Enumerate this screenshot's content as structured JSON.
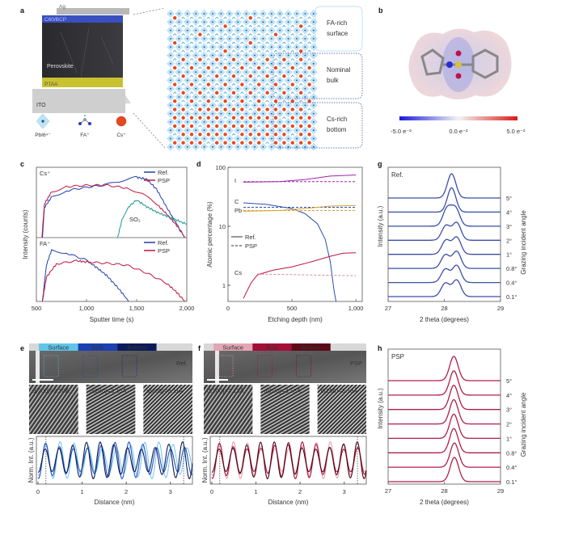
{
  "panels": {
    "a": {
      "label": "a",
      "layers": {
        "ag": "Ag",
        "etl": "C60/BCP",
        "perovskite": "Perovskite",
        "ptaa": "PTAA",
        "ito": "ITO"
      },
      "legend": {
        "pbi6": "PbI6⁴⁻",
        "fa": "FA⁺",
        "cs": "Cs⁺"
      },
      "regions": [
        {
          "line1": "FA-rich",
          "line2": "surface",
          "color": "#7fc6ea"
        },
        {
          "line1": "Nominal",
          "line2": "bulk",
          "color": "#2a3f9a"
        },
        {
          "line1": "Cs-rich",
          "line2": "bottom",
          "color": "#2a3f9a"
        }
      ],
      "colors": {
        "octahedron": "#bfe2f7",
        "cs": "#e8481c",
        "fa": "#3aa0d0"
      }
    },
    "b": {
      "label": "b",
      "colorbar": {
        "min": "-5.0 e⁻²",
        "mid": "0.0 e⁻²",
        "max": "5.0 e⁻²",
        "low_color": "#1a1adc",
        "high_color": "#dc1a1a"
      }
    },
    "c": {
      "label": "c"
    },
    "d": {
      "label": "d"
    },
    "e": {
      "label": "e",
      "bars": [
        "Surface",
        "Bulk",
        "Bottom"
      ],
      "bar_colors": [
        "#5fc4ea",
        "#1d3fb0",
        "#0b1b5a"
      ],
      "tag": "Ref.",
      "d_labels": [
        "d(200)=3.20Å",
        "d(200)=3.15Å",
        "d(200)=3.11Å"
      ]
    },
    "f": {
      "label": "f",
      "bars": [
        "Surface",
        "Bulk",
        "Bottom"
      ],
      "bar_colors": [
        "#e3a6b4",
        "#a30d36",
        "#5c0a18"
      ],
      "tag": "PSP",
      "d_labels": [
        "d(200)=3.13Å",
        "d(200)=3.13Å",
        "d(200)=3.13Å"
      ]
    },
    "g": {
      "label": "g"
    },
    "h": {
      "label": "h"
    }
  },
  "chart_data": [
    {
      "id": "c",
      "type": "line",
      "xlabel": "Sputter time (s)",
      "ylabel": "Intensity (counts)",
      "xlim": [
        500,
        2000
      ],
      "xticks": [
        "500",
        "1,000",
        "1,500",
        "2,000"
      ],
      "xtick_values": [
        500,
        1000,
        1500,
        2000
      ],
      "yscale": "log",
      "y_units": "relative",
      "subplots": [
        {
          "title": "Cs⁺",
          "legend": [
            "Ref.",
            "PSP"
          ],
          "annotation": "SO₂",
          "series": [
            {
              "name": "Ref.",
              "color": "#1f3fae",
              "points": [
                [
                  560,
                  0
                ],
                [
                  580,
                  0.45
                ],
                [
                  650,
                  0.6
                ],
                [
                  800,
                  0.7
                ],
                [
                  1000,
                  0.75
                ],
                [
                  1200,
                  0.79
                ],
                [
                  1350,
                  0.85
                ],
                [
                  1500,
                  0.9
                ],
                [
                  1600,
                  0.87
                ],
                [
                  1700,
                  0.72
                ],
                [
                  1800,
                  0.45
                ],
                [
                  1900,
                  0.2
                ],
                [
                  1980,
                  0
                ]
              ]
            },
            {
              "name": "PSP",
              "color": "#c0143c",
              "points": [
                [
                  555,
                  0
                ],
                [
                  580,
                  0.5
                ],
                [
                  650,
                  0.68
                ],
                [
                  800,
                  0.76
                ],
                [
                  1000,
                  0.78
                ],
                [
                  1200,
                  0.78
                ],
                [
                  1400,
                  0.74
                ],
                [
                  1550,
                  0.66
                ],
                [
                  1700,
                  0.5
                ],
                [
                  1800,
                  0.35
                ],
                [
                  1900,
                  0.18
                ],
                [
                  1980,
                  0
                ]
              ]
            },
            {
              "name": "SO₂",
              "color": "#1a9a8a",
              "points": [
                [
                  1310,
                  0
                ],
                [
                  1360,
                  0.3
                ],
                [
                  1420,
                  0.46
                ],
                [
                  1500,
                  0.56
                ],
                [
                  1600,
                  0.46
                ],
                [
                  1700,
                  0.38
                ],
                [
                  1800,
                  0.32
                ],
                [
                  1900,
                  0.26
                ],
                [
                  2000,
                  0.2
                ]
              ]
            }
          ]
        },
        {
          "title": "FA⁺",
          "legend": [
            "Ref.",
            "PSP"
          ],
          "series": [
            {
              "name": "Ref.",
              "color": "#1f3fae",
              "points": [
                [
                  560,
                  0
                ],
                [
                  600,
                  0.6
                ],
                [
                  650,
                  0.84
                ],
                [
                  800,
                  0.8
                ],
                [
                  1000,
                  0.68
                ],
                [
                  1100,
                  0.56
                ],
                [
                  1200,
                  0.43
                ],
                [
                  1300,
                  0.25
                ],
                [
                  1400,
                  0.05
                ],
                [
                  1420,
                  0
                ]
              ]
            },
            {
              "name": "PSP",
              "color": "#c0143c",
              "points": [
                [
                  560,
                  0
                ],
                [
                  600,
                  0.4
                ],
                [
                  700,
                  0.62
                ],
                [
                  900,
                  0.67
                ],
                [
                  1000,
                  0.65
                ],
                [
                  1200,
                  0.63
                ],
                [
                  1400,
                  0.6
                ],
                [
                  1600,
                  0.47
                ],
                [
                  1800,
                  0.3
                ],
                [
                  1900,
                  0.15
                ],
                [
                  1980,
                  0
                ]
              ]
            }
          ]
        }
      ]
    },
    {
      "id": "d",
      "type": "line",
      "xlabel": "Etching depth (nm)",
      "ylabel": "Atomic percentage (%)",
      "xlim": [
        0,
        1050
      ],
      "xticks": [
        "0",
        "500",
        "1,000"
      ],
      "xtick_values": [
        0,
        500,
        1000
      ],
      "yscale": "log",
      "ylim": [
        0.53,
        100
      ],
      "yticks": [
        "1",
        "10",
        "100"
      ],
      "ytick_values": [
        1,
        10,
        100
      ],
      "legend": [
        "Ref.",
        "PSP"
      ],
      "series": [
        {
          "name": "I",
          "color": "#a020b0",
          "style": "solid",
          "points": [
            [
              120,
              56
            ],
            [
              400,
              57
            ],
            [
              600,
              62
            ],
            [
              800,
              71
            ],
            [
              1000,
              74
            ]
          ]
        },
        {
          "name": "I",
          "color": "#a020b0",
          "style": "dashed",
          "points": [
            [
              120,
              57
            ],
            [
              1000,
              57
            ]
          ]
        },
        {
          "name": "C",
          "color": "#2a4fb0",
          "style": "solid",
          "points": [
            [
              120,
              25
            ],
            [
              300,
              23.5
            ],
            [
              500,
              20
            ],
            [
              600,
              16.5
            ],
            [
              700,
              11
            ],
            [
              760,
              6
            ],
            [
              800,
              2.5
            ],
            [
              830,
              0.8
            ],
            [
              845,
              0.53
            ]
          ]
        },
        {
          "name": "C",
          "color": "#2a4fb0",
          "style": "dashed",
          "points": [
            [
              120,
              21
            ],
            [
              1000,
              21
            ]
          ]
        },
        {
          "name": "Pb",
          "color": "#d8a030",
          "style": "solid",
          "points": [
            [
              120,
              18
            ],
            [
              400,
              18.5
            ],
            [
              600,
              20
            ],
            [
              800,
              22
            ],
            [
              1000,
              22.5
            ]
          ]
        },
        {
          "name": "Pb",
          "color": "#d8a030",
          "style": "dashed",
          "points": [
            [
              120,
              18.5
            ],
            [
              1000,
              18.5
            ]
          ]
        },
        {
          "name": "Cs",
          "color": "#c0143c",
          "style": "solid",
          "points": [
            [
              120,
              0.6
            ],
            [
              180,
              1.1
            ],
            [
              230,
              1.5
            ],
            [
              350,
              1.8
            ],
            [
              500,
              2.05
            ],
            [
              650,
              2.5
            ],
            [
              800,
              3.1
            ],
            [
              900,
              3.5
            ],
            [
              1000,
              3.55
            ]
          ]
        },
        {
          "name": "Cs",
          "color": "#d88aa0",
          "style": "dashed",
          "points": [
            [
              230,
              1.55
            ],
            [
              1000,
              1.45
            ]
          ]
        }
      ]
    },
    {
      "id": "g",
      "type": "line",
      "title": "Ref.",
      "xlabel": "2 theta (degrees)",
      "ylabel": "Intensity (a.u.)",
      "y2label": "Grazing incident angle",
      "xlim": [
        27,
        29
      ],
      "xticks": [
        "27",
        "28",
        "29"
      ],
      "xtick_values": [
        27,
        28,
        29
      ],
      "color": "#3a4fa8",
      "angles": [
        "5°",
        "4°",
        "3°",
        "2°",
        "1°",
        "0.8°",
        "0.4°",
        "0.1°"
      ],
      "peaks": [
        [
          [
            28.13,
            1.0
          ]
        ],
        [
          [
            28.13,
            1.0
          ]
        ],
        [
          [
            28.05,
            0.72
          ],
          [
            28.2,
            0.72
          ]
        ],
        [
          [
            28.03,
            0.6
          ],
          [
            28.22,
            0.72
          ]
        ],
        [
          [
            28.03,
            0.58
          ],
          [
            28.22,
            0.7
          ]
        ],
        [
          [
            28.02,
            0.56
          ],
          [
            28.22,
            0.7
          ]
        ],
        [
          [
            28.02,
            0.55
          ],
          [
            28.22,
            0.7
          ]
        ],
        [
          [
            28.02,
            0.55
          ],
          [
            28.22,
            0.68
          ]
        ]
      ]
    },
    {
      "id": "h",
      "type": "line",
      "title": "PSP",
      "xlabel": "2 theta (degrees)",
      "ylabel": "Intensity (a.u.)",
      "y2label": "Grazing incident angle",
      "xlim": [
        27,
        29
      ],
      "xticks": [
        "27",
        "28",
        "29"
      ],
      "xtick_values": [
        27,
        28,
        29
      ],
      "color": "#b01e4a",
      "angles": [
        "5°",
        "4°",
        "3°",
        "2°",
        "1°",
        "0.8°",
        "0.4°",
        "0.1°"
      ],
      "peaks": [
        [
          [
            28.17,
            1.0
          ]
        ],
        [
          [
            28.17,
            1.0
          ]
        ],
        [
          [
            28.17,
            1.0
          ]
        ],
        [
          [
            28.17,
            1.0
          ]
        ],
        [
          [
            28.17,
            1.0
          ]
        ],
        [
          [
            28.17,
            1.0
          ]
        ],
        [
          [
            28.18,
            1.0
          ]
        ],
        [
          [
            28.18,
            1.0
          ]
        ]
      ]
    },
    {
      "id": "e",
      "type": "line",
      "xlabel": "Distance (nm)",
      "ylabel": "Norm. Int. (a.u.)",
      "xlim": [
        0,
        3.5
      ],
      "xticks": [
        "0",
        "1",
        "2",
        "3"
      ],
      "xtick_values": [
        0,
        1,
        2,
        3
      ],
      "markers": [
        0.18,
        3.3
      ],
      "series": [
        {
          "name": "Surface",
          "color": "#7ccbec",
          "period_nm": 0.32
        },
        {
          "name": "Bulk",
          "color": "#2354c0",
          "period_nm": 0.315
        },
        {
          "name": "Bottom",
          "color": "#0b1b5a",
          "period_nm": 0.311
        }
      ]
    },
    {
      "id": "f",
      "type": "line",
      "xlabel": "Distance (nm)",
      "ylabel": "Norm. Int. (a.u.)",
      "xlim": [
        0,
        3.5
      ],
      "xticks": [
        "0",
        "1",
        "2",
        "3"
      ],
      "xtick_values": [
        0,
        1,
        2,
        3
      ],
      "markers": [
        0.18,
        3.3
      ],
      "series": [
        {
          "name": "Surface",
          "color": "#e8a2b4",
          "period_nm": 0.313
        },
        {
          "name": "Bulk",
          "color": "#b0103a",
          "period_nm": 0.313
        },
        {
          "name": "Bottom",
          "color": "#4a0a18",
          "period_nm": 0.313
        }
      ]
    }
  ]
}
